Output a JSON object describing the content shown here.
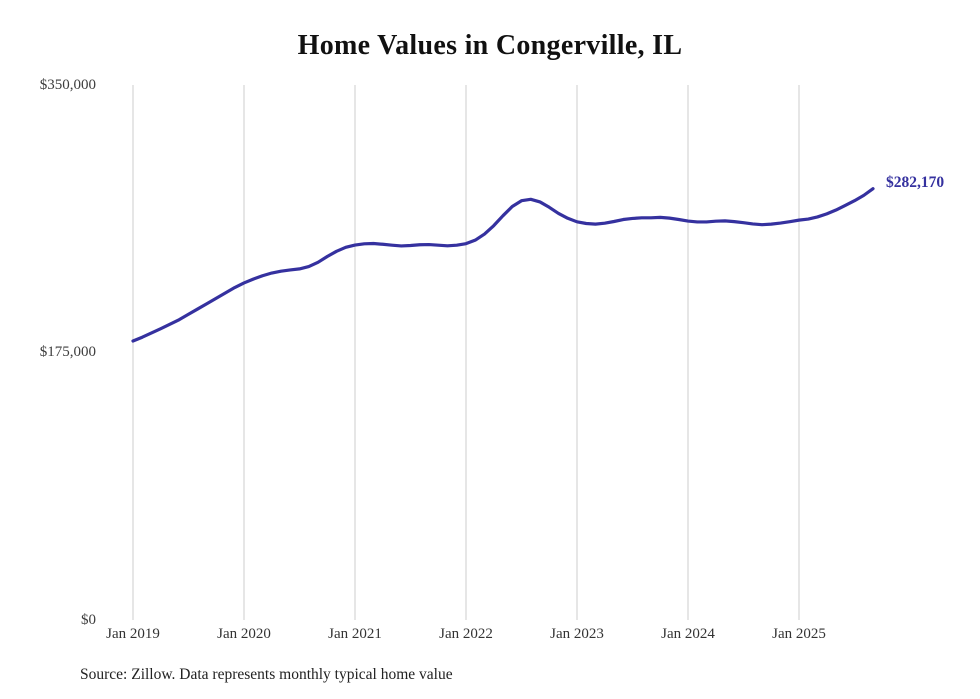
{
  "footer": {
    "source_note": "Source: Zillow. Data represents monthly typical home value"
  },
  "chart_data": {
    "type": "line",
    "title": "Home Values in Congerville, IL",
    "series_name": "Monthly typical home value",
    "unit": "USD",
    "ylim": [
      0,
      350000
    ],
    "y_tick_values": [
      350000,
      175000,
      0
    ],
    "y_tick_labels": [
      "$350,000",
      "$175,000",
      "$0"
    ],
    "x_tick_labels": [
      "Jan 2019",
      "Jan 2020",
      "Jan 2021",
      "Jan 2022",
      "Jan 2023",
      "Jan 2024",
      "Jan 2025"
    ],
    "x_tick_month_indices": [
      0,
      12,
      24,
      36,
      48,
      60,
      72
    ],
    "grid": "vertical-only",
    "legend": "none",
    "line_color": "#35319f",
    "grid_color": "#cccccc",
    "end_label": "$282,170",
    "end_value": 282170,
    "months": [
      "2019-01",
      "2019-02",
      "2019-03",
      "2019-04",
      "2019-05",
      "2019-06",
      "2019-07",
      "2019-08",
      "2019-09",
      "2019-10",
      "2019-11",
      "2019-12",
      "2020-01",
      "2020-02",
      "2020-03",
      "2020-04",
      "2020-05",
      "2020-06",
      "2020-07",
      "2020-08",
      "2020-09",
      "2020-10",
      "2020-11",
      "2020-12",
      "2021-01",
      "2021-02",
      "2021-03",
      "2021-04",
      "2021-05",
      "2021-06",
      "2021-07",
      "2021-08",
      "2021-09",
      "2021-10",
      "2021-11",
      "2021-12",
      "2022-01",
      "2022-02",
      "2022-03",
      "2022-04",
      "2022-05",
      "2022-06",
      "2022-07",
      "2022-08",
      "2022-09",
      "2022-10",
      "2022-11",
      "2022-12",
      "2023-01",
      "2023-02",
      "2023-03",
      "2023-04",
      "2023-05",
      "2023-06",
      "2023-07",
      "2023-08",
      "2023-09",
      "2023-10",
      "2023-11",
      "2023-12",
      "2024-01",
      "2024-02",
      "2024-03",
      "2024-04",
      "2024-05",
      "2024-06",
      "2024-07",
      "2024-08",
      "2024-09",
      "2024-10",
      "2024-11",
      "2024-12",
      "2025-01",
      "2025-02",
      "2025-03",
      "2025-04",
      "2025-05",
      "2025-06",
      "2025-07",
      "2025-08",
      "2025-09"
    ],
    "values": [
      182500,
      185000,
      187800,
      190600,
      193500,
      196500,
      200000,
      203500,
      207000,
      210500,
      214000,
      217500,
      220500,
      223000,
      225200,
      227000,
      228200,
      229000,
      229700,
      231200,
      234000,
      237800,
      241200,
      243800,
      245300,
      246100,
      246300,
      245800,
      245200,
      244700,
      245000,
      245500,
      245600,
      245200,
      244800,
      245200,
      246200,
      248500,
      252500,
      258000,
      264500,
      270500,
      274300,
      275200,
      273500,
      270000,
      266000,
      262800,
      260500,
      259400,
      259000,
      259600,
      260700,
      262000,
      262700,
      263100,
      263100,
      263400,
      262900,
      262000,
      261000,
      260400,
      260400,
      260900,
      261100,
      260600,
      259900,
      259100,
      258600,
      259000,
      259700,
      260600,
      261600,
      262300,
      263700,
      265700,
      268200,
      271200,
      274300,
      277800,
      282170
    ]
  }
}
